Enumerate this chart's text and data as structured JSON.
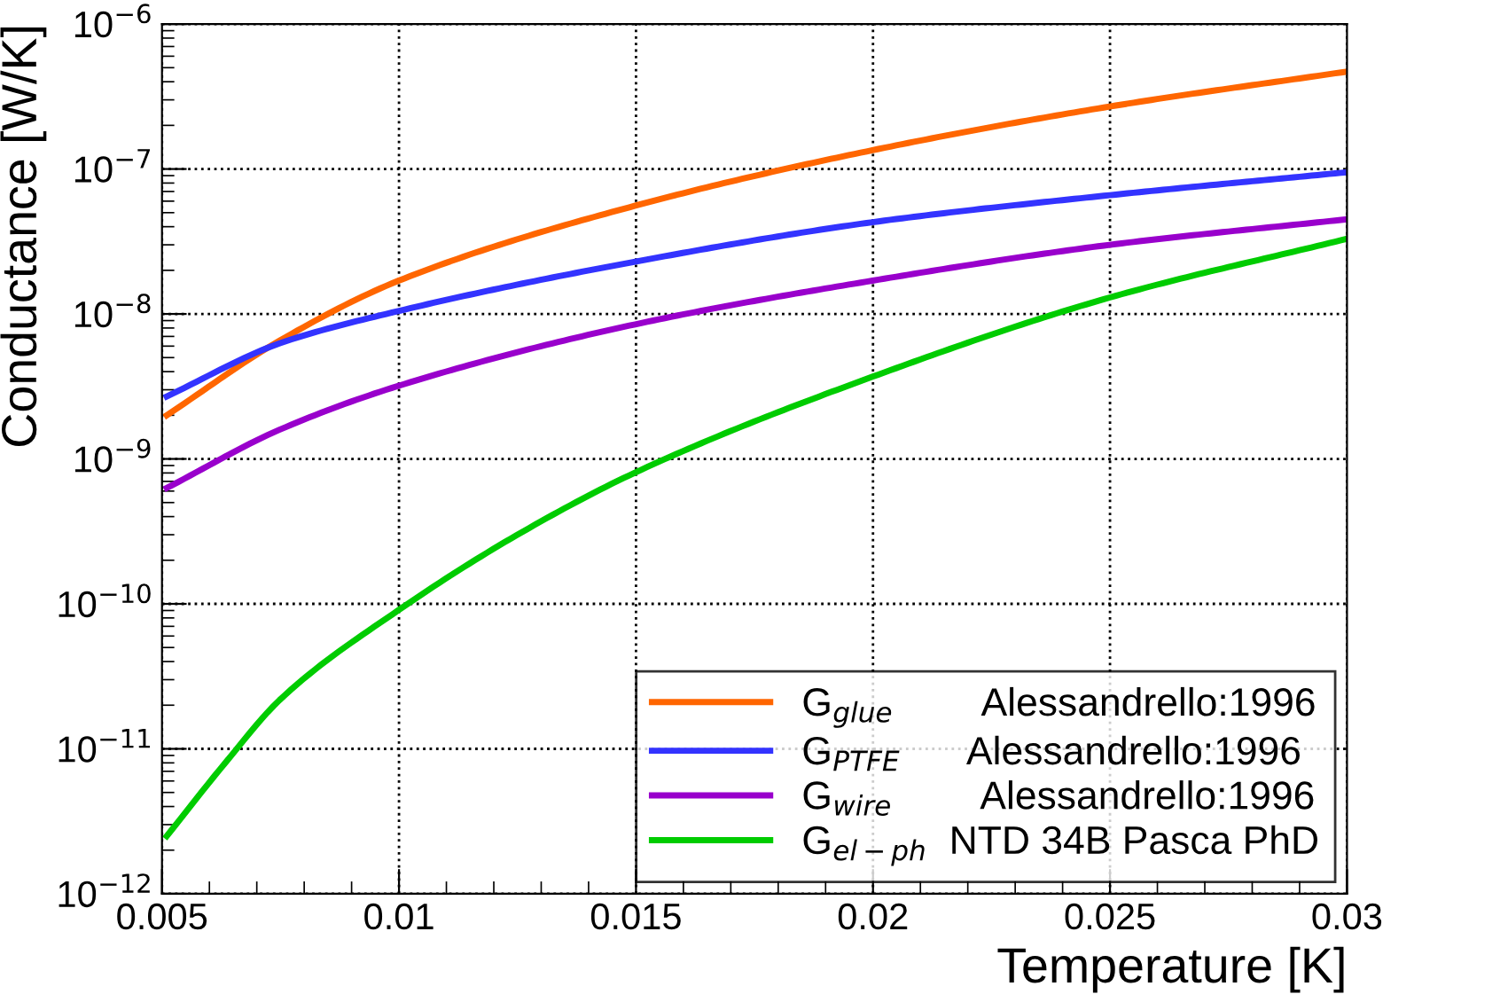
{
  "chart_data": {
    "type": "line",
    "xlabel": "Temperature [K]",
    "ylabel": "Conductance [W/K]",
    "log": "y",
    "xlim": [
      0.005,
      0.03
    ],
    "ylim": [
      1e-12,
      1e-06
    ],
    "xticks": [
      0.005,
      0.01,
      0.015,
      0.02,
      0.025,
      0.03
    ],
    "yticks": [
      {
        "value": 1e-12,
        "label": "10$^{−12}$"
      },
      {
        "value": 1e-11,
        "label": "10$^{−11}$"
      },
      {
        "value": 1e-10,
        "label": "10$^{−10}$"
      },
      {
        "value": 1e-09,
        "label": "10$^{−9}$"
      },
      {
        "value": 1e-08,
        "label": "10$^{−8}$"
      },
      {
        "value": 1e-07,
        "label": "10$^{−7}$"
      },
      {
        "value": 1e-06,
        "label": "10$^{−6}$"
      }
    ],
    "grid": true,
    "legend": "bottom right",
    "marker": "none",
    "line_style": "solid",
    "series": [
      {
        "name": "G$_{glue}$        Alessandrello:1996",
        "color": "#ff6600",
        "x": [
          0.0051,
          0.0075,
          0.01,
          0.015,
          0.02,
          0.025,
          0.03
        ],
        "values": [
          2e-09,
          6.6e-09,
          1.7e-08,
          5.6e-08,
          1.35e-07,
          2.7e-07,
          4.7e-07
        ]
      },
      {
        "name": "G$_{PTFE}$      Alessandrello:1996",
        "color": "#3333ff",
        "x": [
          0.0051,
          0.0075,
          0.01,
          0.015,
          0.02,
          0.025,
          0.03
        ],
        "values": [
          2.7e-09,
          6.3e-09,
          1.05e-08,
          2.3e-08,
          4.3e-08,
          6.6e-08,
          9.5e-08
        ]
      },
      {
        "name": "G$_{wire}$        Alessandrello:1996",
        "color": "#9900cc",
        "x": [
          0.0051,
          0.0075,
          0.01,
          0.015,
          0.02,
          0.025,
          0.03
        ],
        "values": [
          6.3e-10,
          1.6e-09,
          3.2e-09,
          8.5e-09,
          1.7e-08,
          3e-08,
          4.5e-08
        ]
      },
      {
        "name": "G$_{el−ph}$  NTD 34B Pasca PhD",
        "color": "#00cc00",
        "x": [
          0.0051,
          0.00625,
          0.0075,
          0.01,
          0.0125,
          0.015,
          0.02,
          0.025,
          0.03
        ],
        "values": [
          2.5e-12,
          7.4e-12,
          2.2e-11,
          9.1e-11,
          3e-10,
          8.1e-10,
          3.7e-09,
          1.3e-08,
          3.3e-08
        ]
      }
    ]
  }
}
